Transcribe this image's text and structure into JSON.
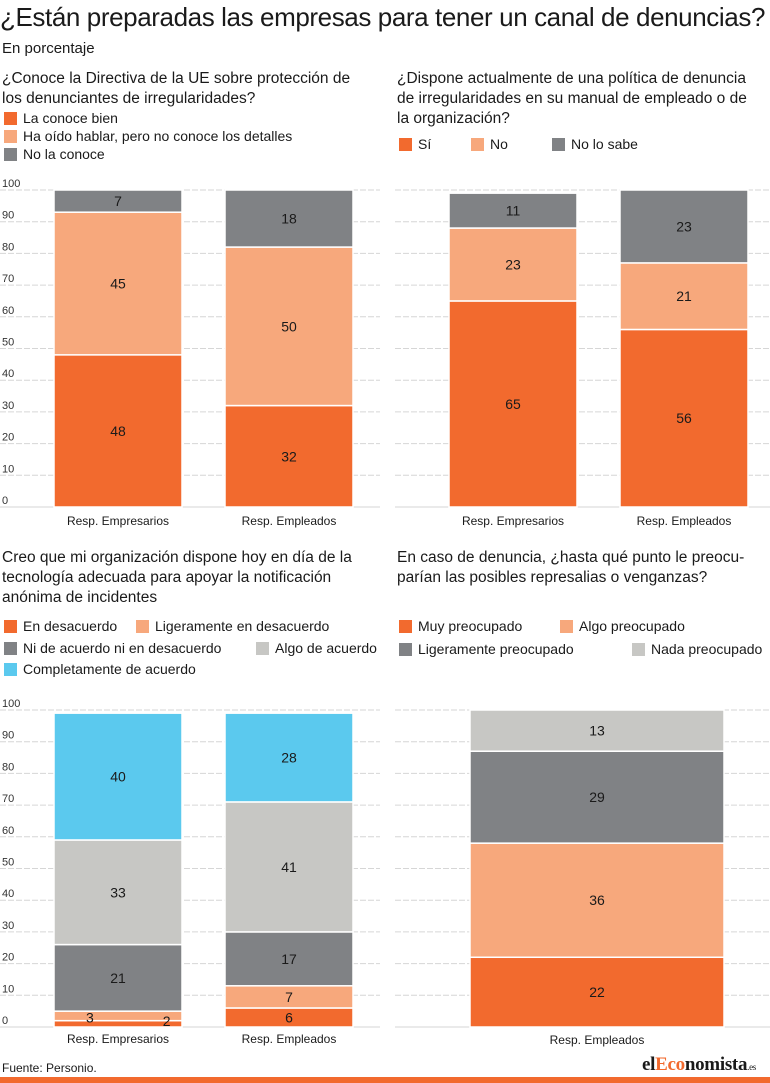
{
  "title": "¿Están preparadas las empresas para tener un canal de denuncias?",
  "subtitle": "En porcentaje",
  "source": "Fuente: Personio.",
  "brand": {
    "part1": "el",
    "part2": "Eco",
    "part3": "nomista",
    "tld": ".es"
  },
  "colors": {
    "orange": "#f26a2e",
    "light_orange": "#f7a87c",
    "dark_gray": "#808285",
    "light_gray": "#c7c7c4",
    "cyan": "#5bc9ee",
    "accent": "#f26a2e"
  },
  "chart_data": [
    {
      "type": "bar",
      "stacked": true,
      "question": "¿Conoce la Directiva de la UE sobre protección de los denunciantes de irregularidades?",
      "categories": [
        "Resp. Empresarios",
        "Resp. Empleados"
      ],
      "ylim": [
        0,
        100
      ],
      "yticks": [
        0,
        10,
        20,
        30,
        40,
        50,
        60,
        70,
        80,
        90,
        100
      ],
      "grid": true,
      "legend_position": "top",
      "series": [
        {
          "name": "La conoce bien",
          "color": "#f26a2e",
          "values": [
            48,
            32
          ]
        },
        {
          "name": "Ha oído hablar, pero no conoce los detalles",
          "color": "#f7a87c",
          "values": [
            45,
            50
          ]
        },
        {
          "name": "No la conoce",
          "color": "#808285",
          "values": [
            7,
            18
          ]
        }
      ]
    },
    {
      "type": "bar",
      "stacked": true,
      "question": "¿Dispone actualmente de una política de denuncia de irregularidades en su manual de empleado o de la organización?",
      "categories": [
        "Resp. Empresarios",
        "Resp. Empleados"
      ],
      "ylim": [
        0,
        100
      ],
      "grid": true,
      "legend_position": "top",
      "series": [
        {
          "name": "Sí",
          "color": "#f26a2e",
          "values": [
            65,
            56
          ]
        },
        {
          "name": "No",
          "color": "#f7a87c",
          "values": [
            23,
            21
          ]
        },
        {
          "name": "No lo sabe",
          "color": "#808285",
          "values": [
            11,
            23
          ]
        }
      ]
    },
    {
      "type": "bar",
      "stacked": true,
      "question": "Creo que mi organización dispone hoy en día de la tecnología adecuada para apoyar la notificación anónima de incidentes",
      "categories": [
        "Resp. Empresarios",
        "Resp. Empleados"
      ],
      "ylim": [
        0,
        100
      ],
      "yticks": [
        0,
        10,
        20,
        30,
        40,
        50,
        60,
        70,
        80,
        90,
        100
      ],
      "grid": true,
      "legend_position": "top",
      "series": [
        {
          "name": "En desacuerdo",
          "color": "#f26a2e",
          "values": [
            2,
            6
          ]
        },
        {
          "name": "Ligeramente en desacuerdo",
          "color": "#f7a87c",
          "values": [
            3,
            7
          ]
        },
        {
          "name": "Ni de acuerdo ni en desacuerdo",
          "color": "#808285",
          "values": [
            21,
            17
          ]
        },
        {
          "name": "Algo de acuerdo",
          "color": "#c7c7c4",
          "values": [
            33,
            41
          ]
        },
        {
          "name": "Completamente de acuerdo",
          "color": "#5bc9ee",
          "values": [
            40,
            28
          ]
        }
      ]
    },
    {
      "type": "bar",
      "stacked": true,
      "question": "En caso de denuncia, ¿hasta qué punto le preocuparían las posibles represalias o venganzas?",
      "categories": [
        "Resp. Empleados"
      ],
      "ylim": [
        0,
        100
      ],
      "grid": true,
      "legend_position": "top",
      "series": [
        {
          "name": "Muy preocupado",
          "color": "#f26a2e",
          "values": [
            22
          ]
        },
        {
          "name": "Algo preocupado",
          "color": "#f7a87c",
          "values": [
            36
          ]
        },
        {
          "name": "Ligeramente preocupado",
          "color": "#808285",
          "values": [
            29
          ]
        },
        {
          "name": "Nada preocupado",
          "color": "#c7c7c4",
          "values": [
            13
          ]
        }
      ]
    }
  ],
  "panels": [
    {
      "question_lines": [
        "¿Conoce la Directiva de la UE sobre protección de",
        "los denunciantes de irregularidades?"
      ],
      "legend": [
        "La conoce bien",
        "Ha oído hablar, pero no conoce los detalles",
        "No la conoce"
      ]
    },
    {
      "question_lines": [
        "¿Dispone actualmente de una política de denuncia",
        "de irregularidades en su manual de empleado o de",
        "la organización?"
      ],
      "legend": [
        "Sí",
        "No",
        "No lo sabe"
      ]
    },
    {
      "question_lines": [
        "Creo que mi organización dispone hoy en día de la",
        "tecnología adecuada para apoyar la notificación",
        "anónima de incidentes"
      ],
      "legend": [
        "En desacuerdo",
        "Ligeramente en desacuerdo",
        "Ni de acuerdo ni en desacuerdo",
        "Algo de acuerdo",
        "Completamente de acuerdo"
      ]
    },
    {
      "question_lines": [
        "En caso de denuncia, ¿hasta qué punto le preocu-",
        "parían las posibles represalias o venganzas?"
      ],
      "legend": [
        "Muy preocupado",
        "Algo preocupado",
        "Ligeramente preocupado",
        "Nada preocupado"
      ]
    }
  ]
}
